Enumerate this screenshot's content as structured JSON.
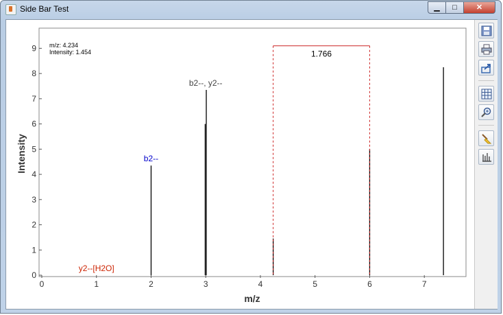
{
  "window": {
    "title": "Side Bar Test"
  },
  "colors": {
    "fragment_b": "#0000cc",
    "fragment_neutral": "#444444",
    "fragment_loss": "#cc2200",
    "measure": "#cc2222"
  },
  "readout": {
    "mz_line": "m/z: 4.234",
    "intensity_line": "Intensity: 1.454"
  },
  "measurement": {
    "label": "1.766",
    "from_mz": 4.234,
    "to_mz": 6.0
  },
  "annotations": [
    {
      "text": "b2--",
      "mz": 2.0,
      "kind": "b"
    },
    {
      "text": "b2--, y2--",
      "mz": 3.0,
      "kind": "neutral"
    },
    {
      "text": "y2--[H2O]",
      "mz": 1.0,
      "kind": "loss"
    }
  ],
  "sidebar": {
    "buttons": [
      {
        "name": "save-button",
        "icon": "floppy-disk-icon"
      },
      {
        "name": "print-button",
        "icon": "printer-icon"
      },
      {
        "name": "export-button",
        "icon": "export-arrow-icon"
      },
      {
        "name": "grid-toggle-button",
        "icon": "grid-icon"
      },
      {
        "name": "zoom-button",
        "icon": "magnifier-icon"
      },
      {
        "name": "clear-annotations-button",
        "icon": "broom-icon"
      },
      {
        "name": "show-peaks-button",
        "icon": "peak-bars-icon"
      }
    ]
  },
  "chart_data": {
    "type": "bar",
    "xlabel": "m/z",
    "ylabel": "Intensity",
    "xlim": [
      0,
      7.75
    ],
    "ylim": [
      0,
      9.8
    ],
    "xticks": [
      0,
      1,
      2,
      3,
      4,
      5,
      6,
      7
    ],
    "yticks": [
      0,
      1,
      2,
      3,
      4,
      5,
      6,
      7,
      8,
      9
    ],
    "peaks": [
      {
        "mz": 2.0,
        "intensity": 4.35
      },
      {
        "mz": 2.99,
        "intensity": 6.0
      },
      {
        "mz": 3.01,
        "intensity": 7.35
      },
      {
        "mz": 4.234,
        "intensity": 1.454
      },
      {
        "mz": 6.0,
        "intensity": 5.0
      },
      {
        "mz": 7.35,
        "intensity": 8.25
      }
    ]
  }
}
